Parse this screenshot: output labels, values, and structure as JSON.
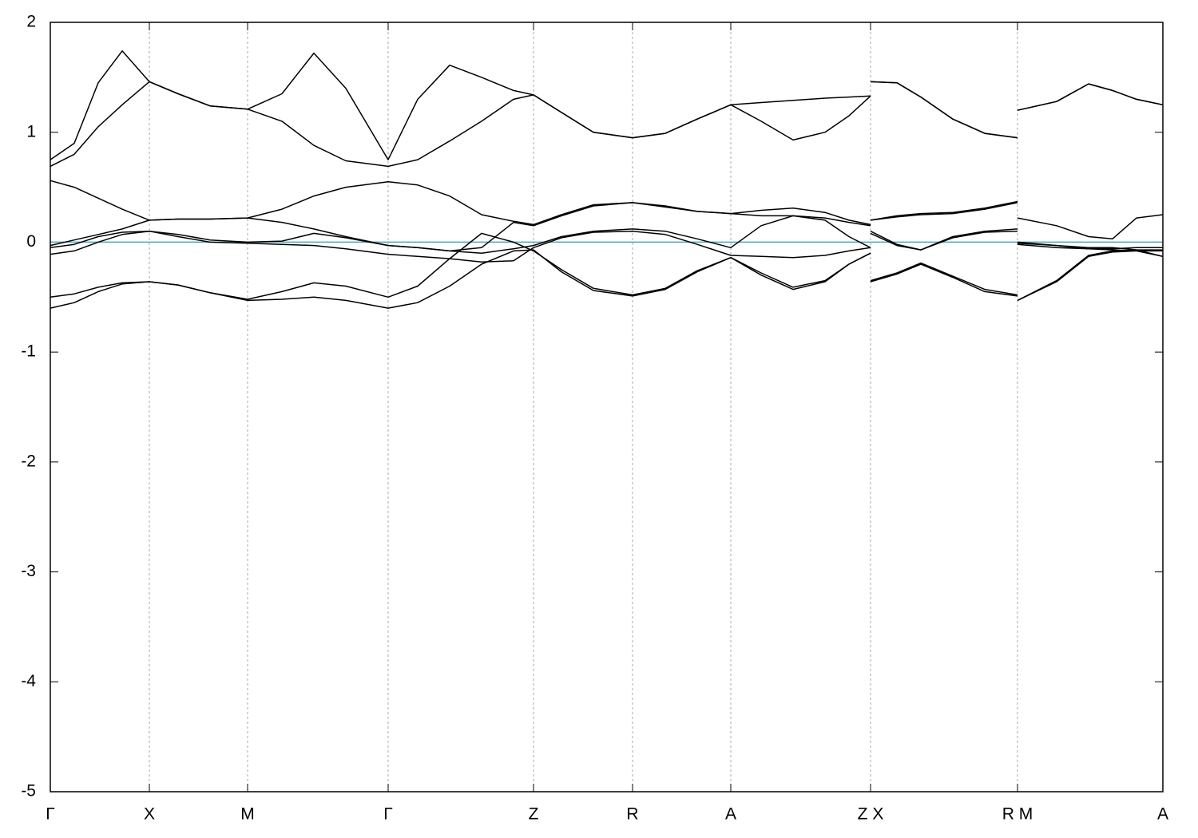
{
  "chart_data": {
    "type": "line",
    "xlim": [
      0,
      13.93
    ],
    "ylim": [
      -5,
      2
    ],
    "yticks": [
      -5,
      -4,
      -3,
      -2,
      -1,
      0,
      1,
      2
    ],
    "xticks": [
      {
        "value": 0,
        "label": "Γ"
      },
      {
        "value": 1.24,
        "label": "X"
      },
      {
        "value": 2.47,
        "label": "M"
      },
      {
        "value": 4.23,
        "label": "Γ"
      },
      {
        "value": 6.05,
        "label": "Z"
      },
      {
        "value": 7.29,
        "label": "R"
      },
      {
        "value": 8.52,
        "label": "A"
      },
      {
        "value": 10.27,
        "label": "Z X"
      },
      {
        "value": 12.11,
        "label": "R M"
      },
      {
        "value": 13.93,
        "label": "A"
      }
    ],
    "grid": "x",
    "hline": {
      "value": 0,
      "color": "#4aa9b8"
    },
    "x": [
      0,
      0.3,
      0.6,
      0.9,
      1.24,
      1.6,
      2.0,
      2.47,
      2.9,
      3.3,
      3.7,
      4.23,
      4.6,
      5.0,
      5.4,
      5.8,
      6.05,
      6.4,
      6.8,
      7.29,
      7.7,
      8.1,
      8.52,
      8.9,
      9.3,
      9.7,
      10.0,
      10.27,
      10.27,
      10.27,
      10.6,
      10.9,
      11.3,
      11.7,
      12.11,
      12.11,
      12.11,
      12.6,
      13.0,
      13.3,
      13.6,
      13.93
    ],
    "series": [
      {
        "color": "#000000",
        "values": [
          0.75,
          0.9,
          1.45,
          1.74,
          1.46,
          1.35,
          1.24,
          1.21,
          1.35,
          1.72,
          1.4,
          0.75,
          1.3,
          1.61,
          1.5,
          1.38,
          1.34,
          1.18,
          1.0,
          0.95,
          0.99,
          1.12,
          1.25,
          1.27,
          1.29,
          1.31,
          1.32,
          1.33,
          null,
          1.46,
          1.45,
          1.32,
          1.12,
          0.99,
          0.95,
          null,
          1.2,
          1.28,
          1.44,
          1.38,
          1.3,
          1.25
        ]
      },
      {
        "color": "#000000",
        "values": [
          0.69,
          0.8,
          1.05,
          1.25,
          1.46,
          1.35,
          1.24,
          1.21,
          1.1,
          0.88,
          0.74,
          0.69,
          0.75,
          0.92,
          1.1,
          1.3,
          1.34,
          1.18,
          1.0,
          0.95,
          0.99,
          1.12,
          1.25,
          1.1,
          0.93,
          1.0,
          1.15,
          1.33,
          null,
          1.46,
          1.45,
          1.32,
          1.12,
          0.99,
          0.95,
          null,
          1.2,
          1.28,
          1.44,
          1.38,
          1.3,
          1.25
        ]
      },
      {
        "color": "#000000",
        "values": [
          0.56,
          0.5,
          0.4,
          0.3,
          0.2,
          0.21,
          0.21,
          0.22,
          0.3,
          0.42,
          0.5,
          0.55,
          0.52,
          0.42,
          0.25,
          0.19,
          0.16,
          0.25,
          0.34,
          0.36,
          0.32,
          0.28,
          0.26,
          0.29,
          0.31,
          0.27,
          0.2,
          0.16,
          null,
          0.2,
          0.24,
          0.26,
          0.27,
          0.31,
          0.37,
          null,
          0.22,
          0.15,
          0.05,
          0.03,
          0.22,
          0.25
        ]
      },
      {
        "color": "#000000",
        "values": [
          -0.03,
          0.02,
          0.07,
          0.12,
          0.2,
          0.21,
          0.21,
          0.22,
          0.18,
          0.12,
          0.05,
          -0.03,
          -0.05,
          -0.08,
          -0.05,
          0.18,
          0.15,
          0.24,
          0.33,
          0.36,
          0.33,
          0.28,
          0.26,
          0.24,
          0.24,
          0.22,
          0.18,
          0.15,
          null,
          0.2,
          0.23,
          0.25,
          0.26,
          0.3,
          0.36,
          null,
          -0.01,
          -0.03,
          -0.06,
          -0.06,
          -0.05,
          -0.05
        ]
      },
      {
        "color": "#000000",
        "values": [
          -0.05,
          -0.02,
          0.05,
          0.09,
          0.1,
          0.07,
          0.02,
          0,
          0.01,
          0.08,
          0.04,
          -0.03,
          -0.05,
          -0.08,
          -0.1,
          -0.06,
          -0.03,
          0.05,
          0.1,
          0.12,
          0.1,
          0.03,
          -0.05,
          0.15,
          0.24,
          0.2,
          0.05,
          -0.05,
          null,
          0.1,
          -0.02,
          -0.07,
          0.05,
          0.1,
          0.12,
          null,
          0,
          -0.03,
          -0.05,
          -0.05,
          -0.07,
          -0.13
        ]
      },
      {
        "color": "#000000",
        "values": [
          -0.11,
          -0.08,
          0.0,
          0.07,
          0.1,
          0.05,
          0.0,
          -0.01,
          -0.02,
          -0.03,
          -0.06,
          -0.11,
          -0.13,
          -0.15,
          -0.18,
          -0.17,
          -0.05,
          0.04,
          0.09,
          0.1,
          0.07,
          -0.02,
          -0.12,
          -0.13,
          -0.14,
          -0.12,
          -0.08,
          -0.05,
          null,
          0.08,
          -0.03,
          -0.07,
          0.04,
          0.09,
          0.1,
          null,
          -0.02,
          -0.05,
          -0.06,
          -0.07,
          -0.08,
          -0.13
        ]
      },
      {
        "color": "#000000",
        "values": [
          -0.5,
          -0.47,
          -0.41,
          -0.37,
          -0.36,
          -0.39,
          -0.46,
          -0.52,
          -0.45,
          -0.37,
          -0.4,
          -0.5,
          -0.4,
          -0.15,
          0.08,
          0.0,
          -0.08,
          -0.25,
          -0.42,
          -0.48,
          -0.42,
          -0.26,
          -0.14,
          -0.28,
          -0.41,
          -0.35,
          -0.2,
          -0.1,
          null,
          -0.35,
          -0.28,
          -0.19,
          -0.31,
          -0.43,
          -0.48,
          null,
          -0.53,
          -0.35,
          -0.12,
          -0.08,
          -0.07,
          -0.07
        ]
      },
      {
        "color": "#000000",
        "values": [
          -0.6,
          -0.55,
          -0.45,
          -0.38,
          -0.36,
          -0.39,
          -0.46,
          -0.53,
          -0.52,
          -0.5,
          -0.53,
          -0.6,
          -0.55,
          -0.4,
          -0.2,
          -0.08,
          -0.07,
          -0.27,
          -0.44,
          -0.49,
          -0.43,
          -0.27,
          -0.14,
          -0.3,
          -0.43,
          -0.36,
          -0.2,
          -0.1,
          null,
          -0.36,
          -0.29,
          -0.2,
          -0.32,
          -0.45,
          -0.49,
          null,
          -0.53,
          -0.36,
          -0.13,
          -0.09,
          -0.08,
          -0.08
        ]
      }
    ]
  }
}
